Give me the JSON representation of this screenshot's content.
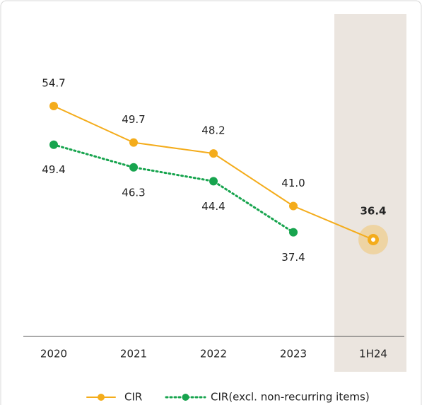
{
  "chart_data": {
    "type": "line",
    "categories": [
      "2020",
      "2021",
      "2022",
      "2023",
      "1H24"
    ],
    "series": [
      {
        "name": "CIR",
        "color": "#f4ac1b",
        "values": [
          54.7,
          49.7,
          48.2,
          41.0,
          36.4
        ],
        "value_labels": [
          "54.7",
          "49.7",
          "48.2",
          "41.0",
          "36.4"
        ]
      },
      {
        "name": "CIR(excl. non-recurring items)",
        "color": "#17a44e",
        "values": [
          49.4,
          46.3,
          44.4,
          37.4,
          null
        ]
      }
    ]
  }
}
